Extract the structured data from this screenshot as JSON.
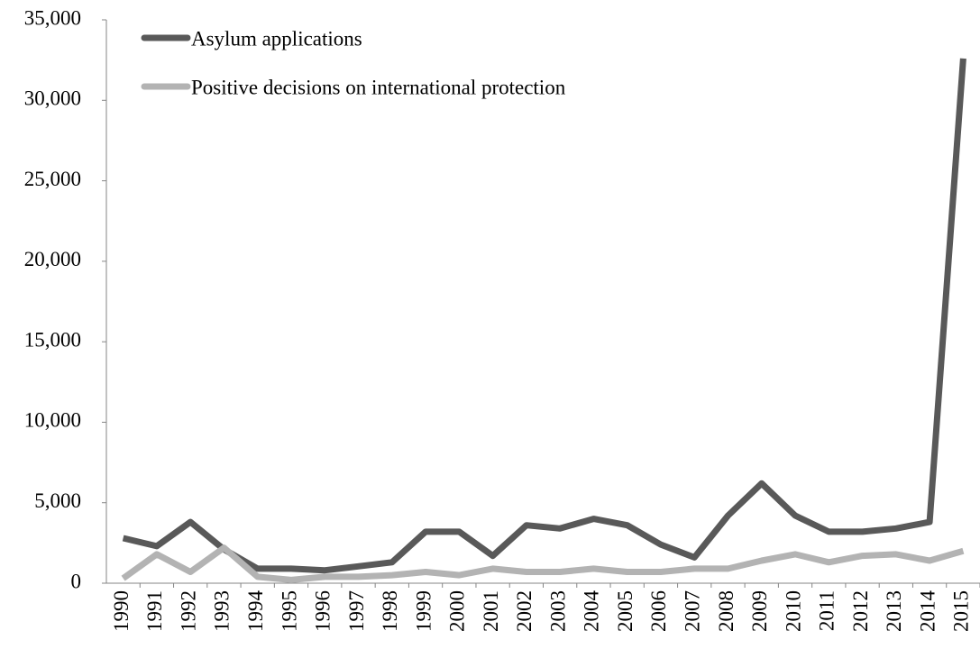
{
  "chart_data": {
    "type": "line",
    "categories": [
      "1990",
      "1991",
      "1992",
      "1993",
      "1994",
      "1995",
      "1996",
      "1997",
      "1998",
      "1999",
      "2000",
      "2001",
      "2002",
      "2003",
      "2004",
      "2005",
      "2006",
      "2007",
      "2008",
      "2009",
      "2010",
      "2011",
      "2012",
      "2013",
      "2014",
      "2015"
    ],
    "series": [
      {
        "name": "Asylum applications",
        "color": "#595959",
        "values": [
          2800,
          2300,
          3800,
          2100,
          900,
          900,
          800,
          1050,
          1300,
          3200,
          3200,
          1700,
          3600,
          3400,
          4000,
          3600,
          2400,
          1600,
          4200,
          6200,
          4200,
          3200,
          3200,
          3400,
          3800,
          32600
        ]
      },
      {
        "name": "Positive decisions on international protection",
        "color": "#b3b3b3",
        "values": [
          300,
          1800,
          700,
          2200,
          400,
          200,
          400,
          400,
          500,
          700,
          500,
          900,
          700,
          700,
          900,
          700,
          700,
          900,
          900,
          1400,
          1800,
          1300,
          1700,
          1800,
          1400,
          2000
        ]
      }
    ],
    "ylim": [
      0,
      35000
    ],
    "yticks": [
      0,
      {
        "value": 5000,
        "label": "5,000"
      },
      {
        "value": 10000,
        "label": "10,000"
      },
      {
        "value": 15000,
        "label": "15,000"
      },
      {
        "value": 20000,
        "label": "20,000"
      },
      {
        "value": 25000,
        "label": "25,000"
      },
      {
        "value": 30000,
        "label": "30,000"
      },
      {
        "value": 35000,
        "label": "35,000"
      }
    ],
    "grid": false,
    "legend": "top-left"
  }
}
